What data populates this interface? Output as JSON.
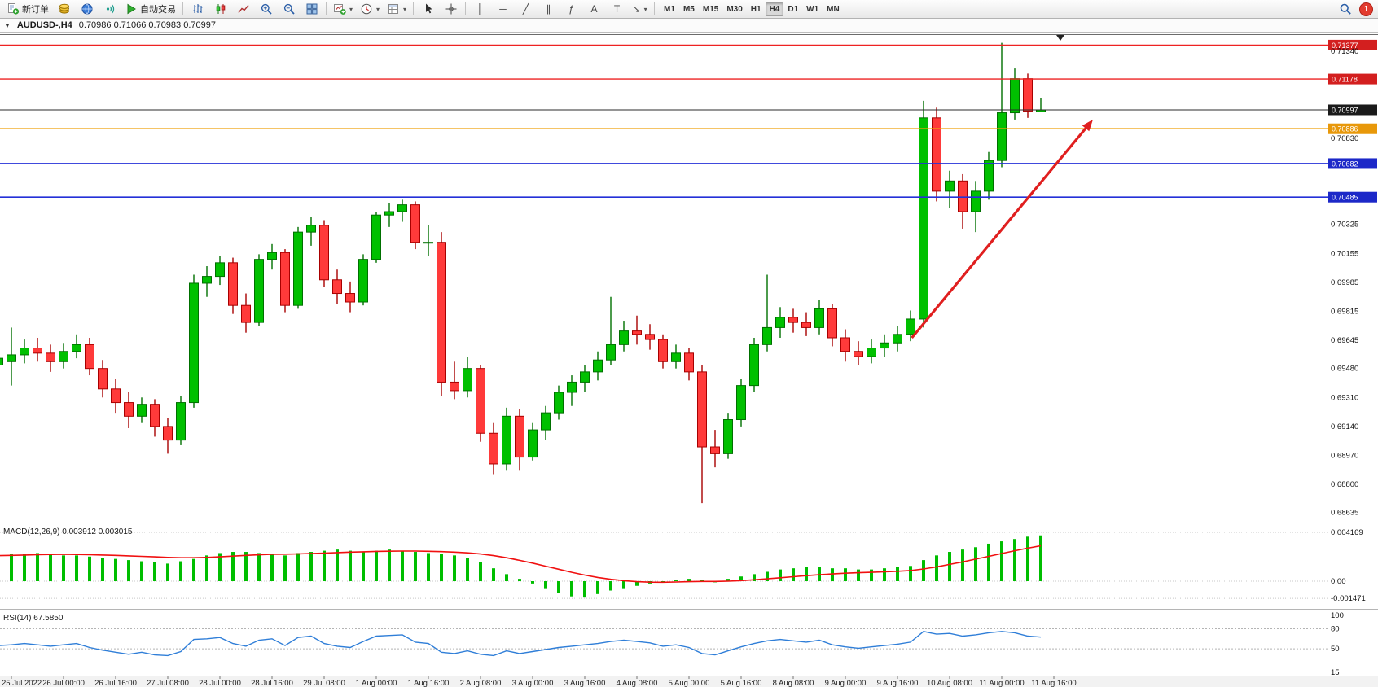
{
  "toolbar": {
    "buttons": [
      {
        "name": "new-order-button",
        "icon": "doc-plus",
        "label": "新订单"
      },
      {
        "name": "market-watch-icon-button",
        "icon": "gold-coins"
      },
      {
        "name": "navigator-icon-button",
        "icon": "blue-globe"
      },
      {
        "name": "news-icon-button",
        "icon": "teal-signal"
      },
      {
        "name": "autotrade-button",
        "icon": "play-green",
        "label": "自动交易"
      },
      {
        "sep": true
      },
      {
        "name": "bar-chart-button",
        "icon": "bars"
      },
      {
        "name": "candle-chart-button",
        "icon": "candles"
      },
      {
        "name": "line-chart-button",
        "icon": "linechart"
      },
      {
        "name": "zoom-in-button",
        "icon": "zoom-in"
      },
      {
        "name": "zoom-out-button",
        "icon": "zoom-out"
      },
      {
        "name": "tile-windows-button",
        "icon": "grid"
      },
      {
        "sep": true
      },
      {
        "name": "new-chart-button",
        "icon": "plus-chart",
        "dropdown": true
      },
      {
        "name": "period-button",
        "icon": "clock",
        "dropdown": true
      },
      {
        "name": "template-button",
        "icon": "template",
        "dropdown": true
      },
      {
        "sep": true
      },
      {
        "name": "cursor-button",
        "icon": "cursor"
      },
      {
        "name": "crosshair-button",
        "icon": "crosshair"
      },
      {
        "sep": true
      },
      {
        "name": "vline-tool-button",
        "glyph": "│"
      },
      {
        "name": "hline-tool-button",
        "glyph": "─"
      },
      {
        "name": "trendline-tool-button",
        "glyph": "╱"
      },
      {
        "name": "channel-tool-button",
        "glyph": "∥"
      },
      {
        "name": "fibo-tool-button",
        "glyph": "ƒ"
      },
      {
        "name": "text-tool-button",
        "glyph": "A"
      },
      {
        "name": "label-tool-button",
        "glyph": "T"
      },
      {
        "name": "arrows-tool-button",
        "glyph": "↘",
        "dropdown": true
      },
      {
        "sep": true
      }
    ],
    "timeframes": [
      "M1",
      "M5",
      "M15",
      "M30",
      "H1",
      "H4",
      "D1",
      "W1",
      "MN"
    ],
    "active_timeframe": "H4",
    "notification_count": "1"
  },
  "symbol_header": {
    "collapse": "▼",
    "title": "AUDUSD-,H4",
    "ohlc": "0.70986 0.71066 0.70983 0.70997"
  },
  "chart_data": {
    "type": "candlestick",
    "symbol": "AUDUSD-",
    "timeframe": "H4",
    "current_ohlc": {
      "open": "0.70986",
      "high": "0.71066",
      "low": "0.70983",
      "close": "0.70997"
    },
    "price_range": {
      "top": 0.71441,
      "bottom": 0.68576
    },
    "up_color": "#00c000",
    "up_border": "#007000",
    "down_color": "#ff3a3a",
    "down_border": "#a80000",
    "time_labels": [
      "25 Jul 2022",
      "26 Jul 00:00",
      "26 Jul 16:00",
      "27 Jul 08:00",
      "28 Jul 00:00",
      "28 Jul 16:00",
      "29 Jul 08:00",
      "1 Aug 00:00",
      "1 Aug 16:00",
      "2 Aug 08:00",
      "3 Aug 00:00",
      "3 Aug 16:00",
      "4 Aug 08:00",
      "5 Aug 00:00",
      "5 Aug 16:00",
      "8 Aug 08:00",
      "9 Aug 00:00",
      "9 Aug 16:00",
      "10 Aug 08:00",
      "11 Aug 00:00",
      "11 Aug 16:00"
    ],
    "price_axis_labels": [
      {
        "text": "0.71340",
        "value": 0.7134
      },
      {
        "text": "0.70830",
        "value": 0.7083
      },
      {
        "text": "0.70325",
        "value": 0.70325
      },
      {
        "text": "0.70155",
        "value": 0.70155
      },
      {
        "text": "0.69985",
        "value": 0.69985
      },
      {
        "text": "0.69815",
        "value": 0.69815
      },
      {
        "text": "0.69645",
        "value": 0.69645
      },
      {
        "text": "0.69480",
        "value": 0.6948
      },
      {
        "text": "0.69310",
        "value": 0.6931
      },
      {
        "text": "0.69140",
        "value": 0.6914
      },
      {
        "text": "0.68970",
        "value": 0.6897
      },
      {
        "text": "0.68800",
        "value": 0.688
      },
      {
        "text": "0.68635",
        "value": 0.68635
      }
    ],
    "hlines": [
      {
        "price": 0.71377,
        "label": "0.71377",
        "color": "#ee2222",
        "badge": "#d31f1f",
        "width": 1.4
      },
      {
        "price": 0.71178,
        "label": "0.71178",
        "color": "#ee2222",
        "badge": "#d31f1f",
        "width": 1.4
      },
      {
        "price": 0.70997,
        "label": "0.70997",
        "color": "#2b2b2b",
        "badge": "#1a1a1a",
        "width": 1
      },
      {
        "price": 0.70886,
        "label": "0.70886",
        "color": "#efa10a",
        "badge": "#e8980a",
        "width": 1.6
      },
      {
        "price": 0.70682,
        "label": "0.70682",
        "color": "#2430d8",
        "badge": "#1c28c8",
        "width": 1.6
      },
      {
        "price": 0.70485,
        "label": "0.70485",
        "color": "#2430d8",
        "badge": "#1c28c8",
        "width": 1.6
      }
    ],
    "trend_arrow": {
      "from": {
        "index": 70.1,
        "price": 0.6966
      },
      "to": {
        "index": 84,
        "price": 0.7094
      },
      "color": "#e01f1f"
    },
    "candles": [
      [
        0.695,
        0.697,
        0.6938,
        0.6954
      ],
      [
        0.6952,
        0.6972,
        0.6938,
        0.6956
      ],
      [
        0.6956,
        0.6965,
        0.6951,
        0.696
      ],
      [
        0.696,
        0.6966,
        0.6952,
        0.6957
      ],
      [
        0.6957,
        0.6962,
        0.6946,
        0.6952
      ],
      [
        0.6952,
        0.6963,
        0.6948,
        0.6958
      ],
      [
        0.6958,
        0.6968,
        0.6954,
        0.6962
      ],
      [
        0.6962,
        0.6966,
        0.6944,
        0.6948
      ],
      [
        0.6948,
        0.6953,
        0.6931,
        0.6936
      ],
      [
        0.6936,
        0.6942,
        0.6922,
        0.6928
      ],
      [
        0.6928,
        0.6934,
        0.6913,
        0.692
      ],
      [
        0.692,
        0.6931,
        0.6916,
        0.6927
      ],
      [
        0.6927,
        0.693,
        0.6908,
        0.6914
      ],
      [
        0.6914,
        0.6919,
        0.6898,
        0.6906
      ],
      [
        0.6906,
        0.6932,
        0.6903,
        0.6928
      ],
      [
        0.6928,
        0.7003,
        0.6925,
        0.6998
      ],
      [
        0.6998,
        0.7008,
        0.699,
        0.7002
      ],
      [
        0.7002,
        0.7014,
        0.6997,
        0.701
      ],
      [
        0.701,
        0.7013,
        0.698,
        0.6985
      ],
      [
        0.6985,
        0.6992,
        0.6969,
        0.6975
      ],
      [
        0.6975,
        0.7015,
        0.6973,
        0.7012
      ],
      [
        0.7012,
        0.7021,
        0.7006,
        0.7016
      ],
      [
        0.7016,
        0.7018,
        0.6981,
        0.6985
      ],
      [
        0.6985,
        0.7031,
        0.6983,
        0.7028
      ],
      [
        0.7028,
        0.7037,
        0.702,
        0.7032
      ],
      [
        0.7032,
        0.7035,
        0.6996,
        0.7
      ],
      [
        0.7,
        0.7006,
        0.6986,
        0.6992
      ],
      [
        0.6992,
        0.6999,
        0.6981,
        0.6987
      ],
      [
        0.6987,
        0.7015,
        0.6985,
        0.7012
      ],
      [
        0.7012,
        0.704,
        0.701,
        0.7038
      ],
      [
        0.7038,
        0.7045,
        0.7031,
        0.704
      ],
      [
        0.704,
        0.7047,
        0.7034,
        0.7044
      ],
      [
        0.7044,
        0.7046,
        0.7018,
        0.7022
      ],
      [
        0.7022,
        0.7032,
        0.7014,
        0.7022
      ],
      [
        0.7022,
        0.7028,
        0.6932,
        0.694
      ],
      [
        0.694,
        0.6952,
        0.693,
        0.6935
      ],
      [
        0.6935,
        0.6955,
        0.6931,
        0.6948
      ],
      [
        0.6948,
        0.695,
        0.6905,
        0.691
      ],
      [
        0.691,
        0.6916,
        0.6886,
        0.6892
      ],
      [
        0.6892,
        0.6925,
        0.6888,
        0.692
      ],
      [
        0.692,
        0.6924,
        0.6888,
        0.6896
      ],
      [
        0.6896,
        0.6916,
        0.6894,
        0.6912
      ],
      [
        0.6912,
        0.6926,
        0.6906,
        0.6922
      ],
      [
        0.6922,
        0.6938,
        0.6918,
        0.6934
      ],
      [
        0.6934,
        0.6944,
        0.6926,
        0.694
      ],
      [
        0.694,
        0.695,
        0.6934,
        0.6946
      ],
      [
        0.6946,
        0.6958,
        0.6941,
        0.6953
      ],
      [
        0.6953,
        0.699,
        0.695,
        0.6962
      ],
      [
        0.6962,
        0.6976,
        0.6958,
        0.697
      ],
      [
        0.697,
        0.6979,
        0.6962,
        0.6968
      ],
      [
        0.6968,
        0.6974,
        0.6959,
        0.6965
      ],
      [
        0.6965,
        0.6968,
        0.6948,
        0.6952
      ],
      [
        0.6952,
        0.6962,
        0.6948,
        0.6957
      ],
      [
        0.6957,
        0.696,
        0.6941,
        0.6946
      ],
      [
        0.6946,
        0.695,
        0.6869,
        0.6902
      ],
      [
        0.6902,
        0.6912,
        0.689,
        0.6898
      ],
      [
        0.6898,
        0.6922,
        0.6895,
        0.6918
      ],
      [
        0.6918,
        0.6942,
        0.6914,
        0.6938
      ],
      [
        0.6938,
        0.6966,
        0.6934,
        0.6962
      ],
      [
        0.6962,
        0.7003,
        0.6958,
        0.6972
      ],
      [
        0.6972,
        0.6984,
        0.6966,
        0.6978
      ],
      [
        0.6978,
        0.6983,
        0.6969,
        0.6975
      ],
      [
        0.6975,
        0.6981,
        0.6967,
        0.6972
      ],
      [
        0.6972,
        0.6988,
        0.6968,
        0.6983
      ],
      [
        0.6983,
        0.6986,
        0.6961,
        0.6966
      ],
      [
        0.6966,
        0.6971,
        0.6952,
        0.6958
      ],
      [
        0.6958,
        0.6964,
        0.695,
        0.6955
      ],
      [
        0.6955,
        0.6965,
        0.6951,
        0.696
      ],
      [
        0.696,
        0.6968,
        0.6955,
        0.6963
      ],
      [
        0.6963,
        0.6973,
        0.6958,
        0.6968
      ],
      [
        0.6968,
        0.6982,
        0.6964,
        0.6977
      ],
      [
        0.6977,
        0.7105,
        0.6972,
        0.7095
      ],
      [
        0.7095,
        0.7101,
        0.7046,
        0.7052
      ],
      [
        0.7052,
        0.7064,
        0.7042,
        0.7058
      ],
      [
        0.7058,
        0.7062,
        0.703,
        0.704
      ],
      [
        0.704,
        0.7058,
        0.7028,
        0.7052
      ],
      [
        0.7052,
        0.7075,
        0.7047,
        0.707
      ],
      [
        0.707,
        0.7139,
        0.7066,
        0.7098
      ],
      [
        0.7098,
        0.7124,
        0.7094,
        0.7118
      ],
      [
        0.7118,
        0.7121,
        0.7095,
        0.7099
      ],
      [
        0.70986,
        0.71066,
        0.70983,
        0.70997
      ]
    ],
    "macd": {
      "label": "MACD(12,26,9)",
      "values_text": "0.003912 0.003015",
      "axis_labels": [
        "0.004169",
        "0.00",
        "-0.001471"
      ],
      "axis_values": [
        0.004169,
        0,
        -0.001471
      ],
      "unit": 0.0001,
      "histogram_color": "#00be00",
      "signal_color": "#f01010",
      "histogram": [
        23,
        23,
        23,
        24,
        23,
        22,
        22,
        21,
        20,
        19,
        18,
        17,
        16,
        15,
        17,
        19,
        22,
        24,
        25,
        25,
        24,
        23,
        22,
        24,
        25,
        26,
        27,
        26,
        25,
        26,
        27,
        26,
        25,
        24,
        23,
        22,
        20,
        16,
        11,
        6,
        2,
        -2,
        -6,
        -10,
        -13,
        -14,
        -11,
        -8,
        -6,
        -4,
        -2,
        -1,
        1,
        2,
        1,
        -1,
        2,
        4,
        6,
        8,
        10,
        11,
        12,
        12,
        11,
        11,
        10,
        10,
        11,
        12,
        13,
        18,
        22,
        25,
        27,
        29,
        32,
        34,
        36,
        38,
        39.1
      ],
      "signal": [
        21.8,
        22,
        22.3,
        22.6,
        22.8,
        22.9,
        22.8,
        22.6,
        22.3,
        22,
        21.6,
        21.2,
        20.8,
        20.3,
        20,
        20,
        20.3,
        20.8,
        21.4,
        22,
        22.5,
        22.9,
        23.1,
        23.3,
        23.6,
        24,
        24.4,
        24.8,
        25.1,
        25.4,
        25.6,
        25.7,
        25.7,
        25.5,
        25.2,
        24.8,
        24.2,
        23.2,
        21.8,
        20,
        17.8,
        15.4,
        12.8,
        10.2,
        7.6,
        5.2,
        3.2,
        1.6,
        0.4,
        -0.4,
        -0.8,
        -0.9,
        -0.7,
        -0.4,
        -0.2,
        -0.2,
        0,
        0.5,
        1.2,
        2,
        2.9,
        3.8,
        4.7,
        5.5,
        6.2,
        6.8,
        7.2,
        7.6,
        8,
        8.5,
        9.1,
        10.4,
        12.2,
        14.3,
        16.5,
        18.8,
        21.2,
        23.6,
        26,
        28.2,
        30.2
      ]
    },
    "rsi": {
      "label": "RSI(14)",
      "value_text": "67.5850",
      "axis_labels": [
        "100",
        "80",
        "50",
        "15"
      ],
      "axis_values": [
        100,
        80,
        50,
        15
      ],
      "levels": [
        80,
        50
      ],
      "line_color": "#2f7ed8",
      "values": [
        55,
        56,
        58,
        56,
        54,
        56,
        58,
        52,
        48,
        45,
        42,
        45,
        41,
        40,
        46,
        64,
        65,
        67,
        58,
        54,
        63,
        65,
        55,
        67,
        69,
        58,
        54,
        52,
        61,
        69,
        70,
        71,
        60,
        58,
        45,
        43,
        47,
        42,
        40,
        47,
        43,
        46,
        49,
        52,
        54,
        56,
        58,
        61,
        63,
        61,
        59,
        54,
        56,
        52,
        43,
        41,
        47,
        53,
        58,
        62,
        64,
        62,
        60,
        63,
        56,
        53,
        51,
        53,
        55,
        57,
        60,
        76,
        72,
        73,
        69,
        71,
        74,
        76,
        74,
        69,
        67.6
      ]
    }
  }
}
